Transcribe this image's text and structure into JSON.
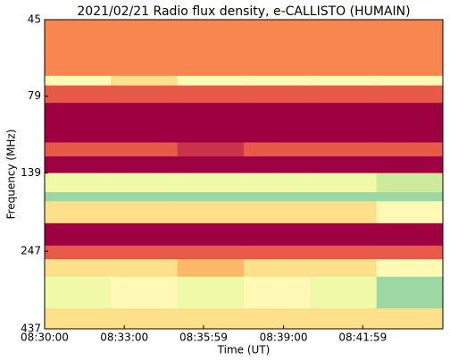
{
  "chart_data": {
    "type": "spectrogram",
    "title": "2021/02/21  Radio flux density, e-CALLISTO (HUMAIN)",
    "xlabel": "Time (UT)",
    "ylabel": "Frequency (MHz)",
    "xlim": [
      30600,
      31500
    ],
    "xticks": [
      {
        "value": 30600,
        "label": "08:30:00"
      },
      {
        "value": 30780,
        "label": "08:33:00"
      },
      {
        "value": 30959,
        "label": "08:35:59"
      },
      {
        "value": 31140,
        "label": "08:39:00"
      },
      {
        "value": 31319,
        "label": "08:41:59"
      }
    ],
    "ylim": [
      45,
      437
    ],
    "y_scale": "log",
    "y_inverted": true,
    "yticks": [
      45,
      79,
      139,
      247,
      437
    ],
    "time_edges": [
      30600,
      30750,
      30900,
      31050,
      31200,
      31350,
      31500
    ],
    "frequency_edges": [
      45,
      68,
      73,
      83,
      111,
      123,
      139,
      160,
      171,
      201,
      237,
      262,
      298,
      376,
      437
    ],
    "z": [
      [
        3,
        3,
        3,
        3,
        3,
        3
      ],
      [
        6,
        5,
        6,
        6,
        6,
        6
      ],
      [
        2,
        2,
        2,
        2,
        2,
        2
      ],
      [
        0,
        0,
        0,
        0,
        0,
        0
      ],
      [
        2,
        2,
        1,
        2,
        2,
        2
      ],
      [
        0,
        0,
        0,
        0,
        0,
        0
      ],
      [
        7,
        7,
        7,
        7,
        7,
        8
      ],
      [
        9,
        9,
        9,
        9,
        9,
        9
      ],
      [
        5,
        5,
        5,
        5,
        5,
        6
      ],
      [
        0,
        0,
        0,
        0,
        0,
        0
      ],
      [
        2,
        2,
        2,
        2,
        2,
        2
      ],
      [
        5,
        5,
        4,
        5,
        5,
        6
      ],
      [
        7,
        6,
        7,
        6,
        7,
        9
      ],
      [
        5,
        5,
        5,
        5,
        5,
        5
      ]
    ],
    "zlim": [
      0,
      10
    ],
    "colors": [
      "#9e0142",
      "#d53e4f",
      "#f46d43",
      "#fdae61",
      "#fee08b",
      "#ffffbf",
      "#e6f598",
      "#abdda4",
      "#66c2a5"
    ]
  }
}
